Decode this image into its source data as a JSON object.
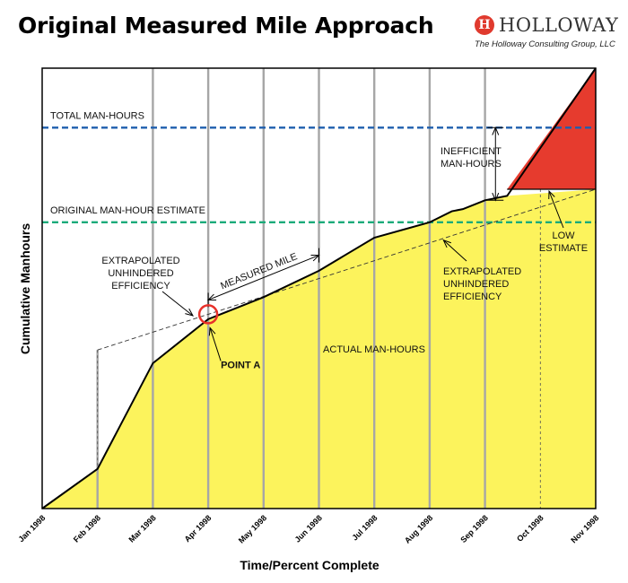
{
  "header": {
    "title": "Original Measured Mile Approach",
    "logo_text": "HOLLOWAY",
    "logo_subtitle": "The Holloway Consulting Group, LLC"
  },
  "colors": {
    "actual_fill": "#fcf35c",
    "inefficient_fill": "#e63b2e",
    "total_line": "#1f5fae",
    "estimate_line": "#1aab7a",
    "gridline": "#a6a6a6",
    "marker": "#e8312a"
  },
  "chart_data": {
    "type": "area",
    "xlabel": "Time/Percent Complete",
    "ylabel": "Cumulative Manhours",
    "categories": [
      "Jan 1998",
      "Feb 1998",
      "Mar 1998",
      "Apr 1998",
      "May 1998",
      "Jun 1998",
      "Jul 1998",
      "Aug 1998",
      "Sep 1998",
      "Oct 1998",
      "Nov 1998"
    ],
    "ylim": [
      0,
      100
    ],
    "grid": "vertical",
    "series": [
      {
        "name": "ACTUAL MAN-HOURS",
        "x": [
          0,
          1,
          2,
          3,
          4,
          5,
          6,
          7,
          7.4,
          7.6,
          8.0,
          8.4,
          10
        ],
        "y": [
          0,
          9,
          33,
          43,
          48,
          54,
          61.5,
          65,
          67.5,
          68,
          70,
          71,
          100
        ]
      },
      {
        "name": "EXTRAPOLATED UNHINDERED EFFICIENCY",
        "x": [
          1,
          10
        ],
        "y": [
          36,
          72.5
        ]
      }
    ],
    "reference_lines": [
      {
        "label": "TOTAL MAN-HOURS",
        "y": 86.5
      },
      {
        "label": "ORIGINAL MAN-HOUR ESTIMATE",
        "y": 65
      }
    ],
    "inefficient_region": {
      "x_start": 8.4,
      "x_end": 10,
      "low_estimate_y": 72.5
    },
    "annotations": {
      "measured_mile": "MEASURED MILE",
      "measured_mile_range": [
        3,
        5
      ],
      "point_a": "POINT A",
      "point_a_x": 3,
      "inefficient": [
        "INEFFICIENT",
        "MAN-HOURS"
      ],
      "extrapolated_left": [
        "EXTRAPOLATED",
        "UNHINDERED",
        "EFFICIENCY"
      ],
      "extrapolated_right": [
        "EXTRAPOLATED",
        "UNHINDERED",
        "EFFICIENCY"
      ],
      "low_estimate": [
        "LOW",
        "ESTIMATE"
      ],
      "actual_label": "ACTUAL MAN-HOURS"
    }
  }
}
